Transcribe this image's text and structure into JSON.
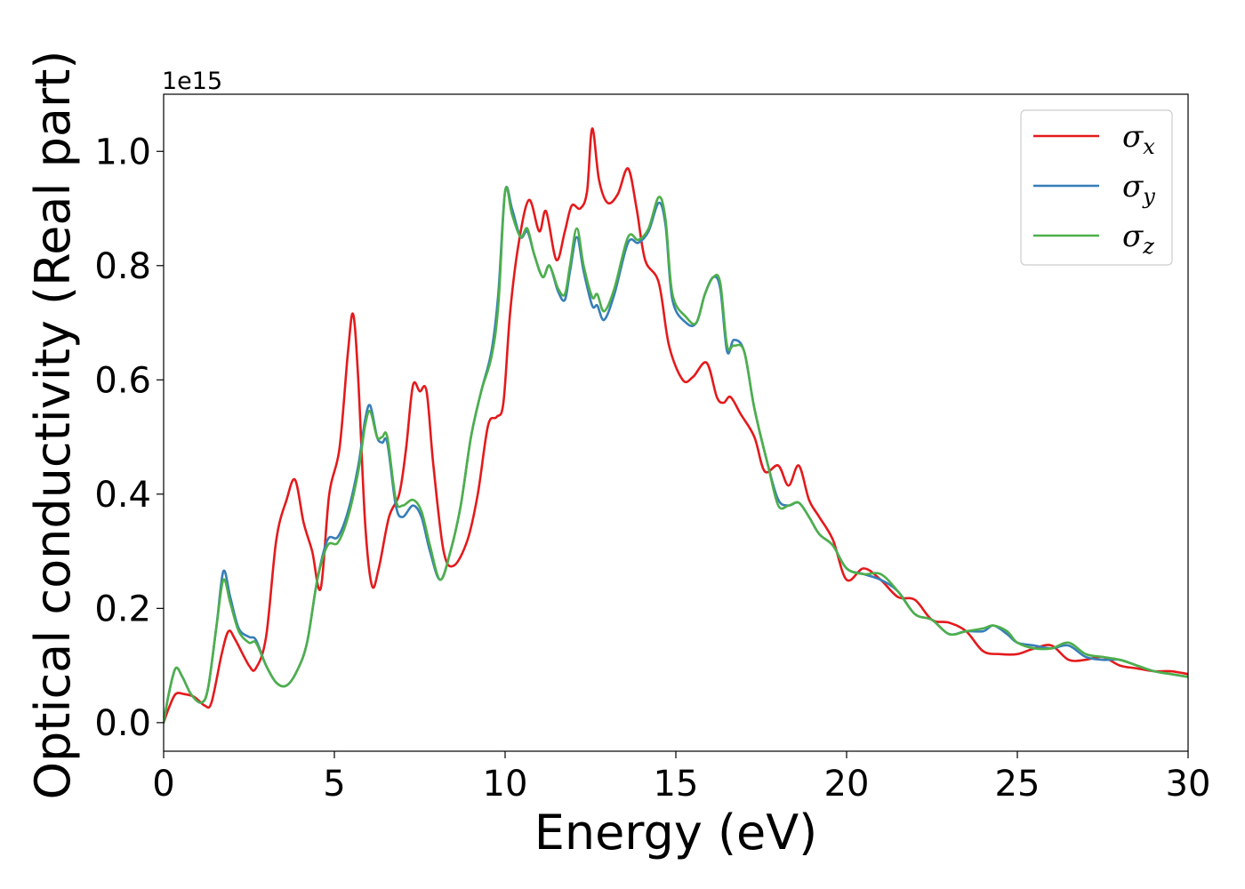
{
  "chart_data": {
    "type": "line",
    "xlabel": "Energy (eV)",
    "ylabel": "Optical conductivity (Real part)",
    "y_offset_text": "1e15",
    "xlim": [
      0,
      30
    ],
    "ylim": [
      -0.05,
      1.1
    ],
    "x_ticks": [
      0,
      5,
      10,
      15,
      20,
      25,
      30
    ],
    "x_tick_labels": [
      "0",
      "5",
      "10",
      "15",
      "20",
      "25",
      "30"
    ],
    "y_ticks": [
      0.0,
      0.2,
      0.4,
      0.6,
      0.8,
      1.0
    ],
    "y_tick_labels": [
      "0.0",
      "0.2",
      "0.4",
      "0.6",
      "0.8",
      "1.0"
    ],
    "grid": false,
    "legend_position": "top-right",
    "series": [
      {
        "name": "σx",
        "symbol": "σ",
        "subscript": "x",
        "color": "#e41a1c",
        "x": [
          0,
          0.15,
          0.35,
          0.6,
          0.9,
          1.2,
          1.4,
          1.7,
          1.9,
          2.1,
          2.5,
          2.7,
          3.0,
          3.3,
          3.6,
          3.85,
          4.1,
          4.35,
          4.6,
          4.85,
          5.15,
          5.4,
          5.55,
          5.7,
          5.9,
          6.1,
          6.3,
          6.6,
          6.9,
          7.1,
          7.3,
          7.5,
          7.7,
          7.9,
          8.2,
          8.5,
          8.9,
          9.2,
          9.5,
          9.75,
          9.95,
          10.15,
          10.4,
          10.7,
          11.0,
          11.2,
          11.5,
          11.75,
          11.95,
          12.2,
          12.4,
          12.55,
          12.75,
          13.0,
          13.3,
          13.6,
          13.85,
          14.1,
          14.5,
          14.8,
          15.2,
          15.5,
          15.9,
          16.2,
          16.4,
          16.6,
          16.9,
          17.3,
          17.6,
          18.0,
          18.3,
          18.6,
          18.9,
          19.2,
          19.6,
          20.0,
          20.5,
          21.0,
          21.5,
          22.0,
          22.5,
          23.0,
          23.5,
          24.0,
          24.5,
          25.0,
          25.5,
          26.0,
          26.5,
          27.0,
          27.5,
          28.0,
          28.5,
          29.0,
          29.5,
          30.0
        ],
        "y": [
          0.0,
          0.025,
          0.05,
          0.05,
          0.045,
          0.03,
          0.035,
          0.12,
          0.16,
          0.145,
          0.1,
          0.095,
          0.15,
          0.32,
          0.39,
          0.425,
          0.35,
          0.3,
          0.235,
          0.4,
          0.48,
          0.65,
          0.715,
          0.6,
          0.35,
          0.24,
          0.27,
          0.36,
          0.4,
          0.48,
          0.59,
          0.58,
          0.58,
          0.45,
          0.3,
          0.275,
          0.32,
          0.4,
          0.52,
          0.535,
          0.56,
          0.72,
          0.84,
          0.915,
          0.86,
          0.895,
          0.81,
          0.86,
          0.905,
          0.9,
          0.93,
          1.04,
          0.95,
          0.91,
          0.925,
          0.97,
          0.9,
          0.81,
          0.77,
          0.66,
          0.6,
          0.605,
          0.63,
          0.57,
          0.56,
          0.57,
          0.54,
          0.5,
          0.44,
          0.45,
          0.415,
          0.45,
          0.39,
          0.36,
          0.32,
          0.25,
          0.27,
          0.25,
          0.22,
          0.215,
          0.18,
          0.175,
          0.16,
          0.125,
          0.12,
          0.12,
          0.13,
          0.135,
          0.11,
          0.11,
          0.115,
          0.1,
          0.095,
          0.09,
          0.09,
          0.085
        ]
      },
      {
        "name": "σy",
        "symbol": "σ",
        "subscript": "y",
        "color": "#377eb8",
        "x": [
          0,
          0.15,
          0.35,
          0.55,
          0.8,
          1.1,
          1.3,
          1.55,
          1.75,
          1.95,
          2.2,
          2.5,
          2.7,
          3.0,
          3.3,
          3.6,
          3.9,
          4.2,
          4.5,
          4.8,
          5.1,
          5.4,
          5.7,
          5.9,
          6.05,
          6.25,
          6.4,
          6.55,
          6.8,
          7.0,
          7.3,
          7.55,
          7.8,
          8.1,
          8.4,
          8.7,
          9.0,
          9.3,
          9.6,
          9.8,
          10.0,
          10.2,
          10.45,
          10.65,
          10.85,
          11.1,
          11.3,
          11.55,
          11.75,
          11.9,
          12.1,
          12.3,
          12.55,
          12.7,
          12.9,
          13.2,
          13.6,
          13.9,
          14.2,
          14.5,
          14.7,
          14.9,
          15.3,
          15.6,
          15.85,
          16.1,
          16.3,
          16.5,
          16.7,
          17.0,
          17.3,
          17.7,
          18.0,
          18.3,
          18.6,
          18.9,
          19.2,
          19.6,
          20.0,
          20.5,
          21.0,
          21.5,
          22.0,
          22.5,
          23.0,
          23.5,
          24.0,
          24.3,
          24.7,
          25.0,
          25.5,
          26.0,
          26.5,
          27.0,
          27.5,
          28.0,
          28.5,
          29.0,
          29.5,
          30.0
        ],
        "y": [
          0.0,
          0.05,
          0.095,
          0.08,
          0.05,
          0.035,
          0.06,
          0.17,
          0.265,
          0.22,
          0.165,
          0.15,
          0.145,
          0.1,
          0.07,
          0.065,
          0.09,
          0.14,
          0.25,
          0.32,
          0.325,
          0.37,
          0.45,
          0.53,
          0.555,
          0.5,
          0.49,
          0.49,
          0.38,
          0.36,
          0.38,
          0.36,
          0.3,
          0.25,
          0.3,
          0.38,
          0.5,
          0.58,
          0.65,
          0.75,
          0.93,
          0.9,
          0.85,
          0.86,
          0.82,
          0.78,
          0.8,
          0.755,
          0.74,
          0.79,
          0.85,
          0.79,
          0.73,
          0.73,
          0.705,
          0.75,
          0.84,
          0.84,
          0.86,
          0.91,
          0.87,
          0.74,
          0.7,
          0.7,
          0.75,
          0.78,
          0.76,
          0.65,
          0.67,
          0.65,
          0.55,
          0.45,
          0.39,
          0.38,
          0.385,
          0.36,
          0.33,
          0.31,
          0.27,
          0.26,
          0.25,
          0.23,
          0.19,
          0.18,
          0.155,
          0.16,
          0.16,
          0.17,
          0.155,
          0.14,
          0.135,
          0.13,
          0.135,
          0.115,
          0.11,
          0.11,
          0.1,
          0.09,
          0.085,
          0.08
        ]
      },
      {
        "name": "σz",
        "symbol": "σ",
        "subscript": "z",
        "color": "#4daf4a",
        "x": [
          0,
          0.15,
          0.35,
          0.55,
          0.8,
          1.1,
          1.3,
          1.55,
          1.75,
          1.95,
          2.2,
          2.5,
          2.7,
          3.0,
          3.3,
          3.6,
          3.9,
          4.2,
          4.5,
          4.8,
          5.1,
          5.4,
          5.7,
          5.9,
          6.05,
          6.25,
          6.4,
          6.55,
          6.8,
          7.0,
          7.3,
          7.55,
          7.8,
          8.1,
          8.4,
          8.7,
          9.0,
          9.3,
          9.6,
          9.8,
          10.0,
          10.2,
          10.45,
          10.65,
          10.85,
          11.1,
          11.3,
          11.55,
          11.75,
          11.9,
          12.1,
          12.3,
          12.55,
          12.7,
          12.9,
          13.2,
          13.6,
          13.9,
          14.2,
          14.5,
          14.7,
          14.9,
          15.3,
          15.6,
          15.85,
          16.1,
          16.3,
          16.5,
          16.7,
          17.0,
          17.3,
          17.7,
          18.0,
          18.3,
          18.6,
          18.9,
          19.2,
          19.6,
          20.0,
          20.5,
          21.0,
          21.5,
          22.0,
          22.5,
          23.0,
          23.5,
          24.0,
          24.3,
          24.7,
          25.0,
          25.5,
          26.0,
          26.5,
          27.0,
          27.5,
          28.0,
          28.5,
          29.0,
          29.5,
          30.0
        ],
        "y": [
          0.0,
          0.05,
          0.095,
          0.08,
          0.05,
          0.035,
          0.06,
          0.17,
          0.25,
          0.21,
          0.16,
          0.14,
          0.14,
          0.1,
          0.07,
          0.065,
          0.09,
          0.14,
          0.25,
          0.31,
          0.315,
          0.36,
          0.44,
          0.52,
          0.545,
          0.5,
          0.5,
          0.5,
          0.39,
          0.38,
          0.39,
          0.37,
          0.31,
          0.25,
          0.3,
          0.38,
          0.5,
          0.58,
          0.64,
          0.73,
          0.93,
          0.89,
          0.85,
          0.865,
          0.82,
          0.78,
          0.8,
          0.76,
          0.75,
          0.8,
          0.865,
          0.8,
          0.745,
          0.75,
          0.72,
          0.76,
          0.85,
          0.845,
          0.865,
          0.92,
          0.88,
          0.75,
          0.71,
          0.7,
          0.75,
          0.78,
          0.77,
          0.66,
          0.66,
          0.65,
          0.55,
          0.45,
          0.38,
          0.38,
          0.385,
          0.36,
          0.33,
          0.31,
          0.27,
          0.26,
          0.26,
          0.23,
          0.19,
          0.18,
          0.155,
          0.16,
          0.165,
          0.17,
          0.16,
          0.14,
          0.13,
          0.13,
          0.14,
          0.12,
          0.115,
          0.11,
          0.1,
          0.09,
          0.085,
          0.08
        ]
      }
    ]
  }
}
